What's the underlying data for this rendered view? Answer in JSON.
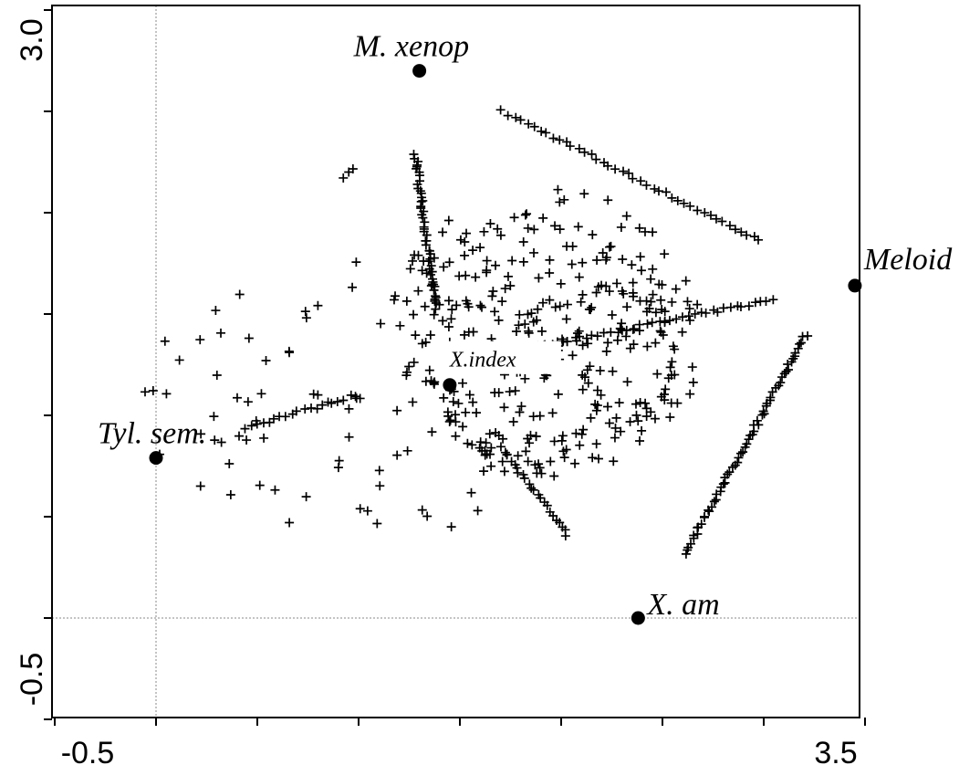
{
  "chart_data": {
    "type": "scatter",
    "title": "",
    "xlabel": "",
    "ylabel": "",
    "xlim": [
      -0.5,
      3.5
    ],
    "ylim": [
      -0.5,
      3.0
    ],
    "x_tick_labels": [
      "-0.5",
      "3.5"
    ],
    "y_tick_labels": [
      "3.0",
      "-0.5"
    ],
    "x_minor_ticks": [
      -0.5,
      0.0,
      0.5,
      1.0,
      1.5,
      2.0,
      2.5,
      3.0,
      3.5
    ],
    "y_minor_ticks": [
      -0.5,
      0.0,
      0.5,
      1.0,
      1.5,
      2.0,
      2.5,
      3.0
    ],
    "reference_lines": {
      "x": 0.0,
      "y": 0.0,
      "style": "dotted"
    },
    "grid": false,
    "legend": "none",
    "colors": {
      "points": "#000000",
      "axes": "#000000",
      "reference": "#888888"
    },
    "labeled_points": [
      {
        "name": "M. xenop",
        "x": 1.3,
        "y": 2.7
      },
      {
        "name": "Meloid",
        "x": 3.45,
        "y": 1.64
      },
      {
        "name": "X.index",
        "x": 1.45,
        "y": 1.15
      },
      {
        "name": "Tyl. sem.",
        "x": 0.0,
        "y": 0.79
      },
      {
        "name": "X. am",
        "x": 2.38,
        "y": 0.0
      }
    ],
    "line_clusters": [
      {
        "from": [
          1.71,
          2.5
        ],
        "to": [
          2.98,
          1.86
        ],
        "n": 42
      },
      {
        "from": [
          1.28,
          2.29
        ],
        "to": [
          1.38,
          1.53
        ],
        "n": 48
      },
      {
        "from": [
          0.44,
          0.94
        ],
        "to": [
          0.99,
          1.1
        ],
        "n": 20
      },
      {
        "from": [
          1.89,
          1.34
        ],
        "to": [
          3.04,
          1.57
        ],
        "n": 40
      },
      {
        "from": [
          2.61,
          0.32
        ],
        "to": [
          3.21,
          1.4
        ],
        "n": 65
      },
      {
        "from": [
          1.72,
          0.82
        ],
        "to": [
          2.03,
          0.41
        ],
        "n": 22
      },
      {
        "from": [
          0.93,
          2.18
        ],
        "to": [
          0.97,
          2.21
        ],
        "n": 3
      }
    ],
    "scatter_region": {
      "seed": 7,
      "dense": {
        "cx": 1.93,
        "cy": 1.41,
        "rx": 0.78,
        "ry": 0.72,
        "n": 330
      },
      "sparse": {
        "cx": 1.05,
        "cy": 1.1,
        "rx": 1.15,
        "ry": 0.7,
        "n": 95
      }
    }
  }
}
